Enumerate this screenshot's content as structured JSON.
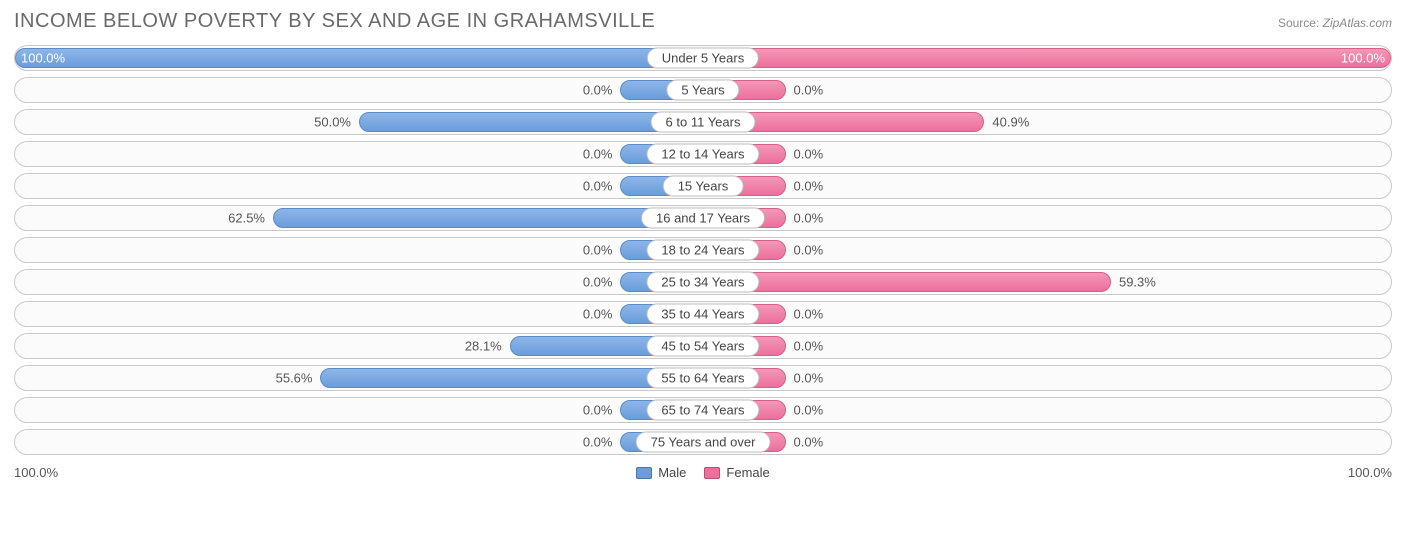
{
  "title": "INCOME BELOW POVERTY BY SEX AND AGE IN GRAHAMSVILLE",
  "source_label": "Source: ",
  "source_value": "ZipAtlas.com",
  "axis": {
    "left": "100.0%",
    "right": "100.0%"
  },
  "legend": {
    "male": "Male",
    "female": "Female"
  },
  "chart": {
    "type": "diverging-bar-horizontal",
    "male_color": "#6a9ddb",
    "female_color": "#ed6f9c",
    "track_border": "#c9c9c9",
    "track_bg": "#fbfbfb",
    "label_pill_bg": "#ffffff",
    "label_pill_border": "#bcbcbc",
    "bar_min_pct_width": 12,
    "font_size_values": 13,
    "font_size_title": 20,
    "axis_max": 100.0
  },
  "rows": [
    {
      "age": "Under 5 Years",
      "male": 100.0,
      "female": 100.0,
      "male_label": "100.0%",
      "female_label": "100.0%"
    },
    {
      "age": "5 Years",
      "male": 0.0,
      "female": 0.0,
      "male_label": "0.0%",
      "female_label": "0.0%"
    },
    {
      "age": "6 to 11 Years",
      "male": 50.0,
      "female": 40.9,
      "male_label": "50.0%",
      "female_label": "40.9%"
    },
    {
      "age": "12 to 14 Years",
      "male": 0.0,
      "female": 0.0,
      "male_label": "0.0%",
      "female_label": "0.0%"
    },
    {
      "age": "15 Years",
      "male": 0.0,
      "female": 0.0,
      "male_label": "0.0%",
      "female_label": "0.0%"
    },
    {
      "age": "16 and 17 Years",
      "male": 62.5,
      "female": 0.0,
      "male_label": "62.5%",
      "female_label": "0.0%"
    },
    {
      "age": "18 to 24 Years",
      "male": 0.0,
      "female": 0.0,
      "male_label": "0.0%",
      "female_label": "0.0%"
    },
    {
      "age": "25 to 34 Years",
      "male": 0.0,
      "female": 59.3,
      "male_label": "0.0%",
      "female_label": "59.3%"
    },
    {
      "age": "35 to 44 Years",
      "male": 0.0,
      "female": 0.0,
      "male_label": "0.0%",
      "female_label": "0.0%"
    },
    {
      "age": "45 to 54 Years",
      "male": 28.1,
      "female": 0.0,
      "male_label": "28.1%",
      "female_label": "0.0%"
    },
    {
      "age": "55 to 64 Years",
      "male": 55.6,
      "female": 0.0,
      "male_label": "55.6%",
      "female_label": "0.0%"
    },
    {
      "age": "65 to 74 Years",
      "male": 0.0,
      "female": 0.0,
      "male_label": "0.0%",
      "female_label": "0.0%"
    },
    {
      "age": "75 Years and over",
      "male": 0.0,
      "female": 0.0,
      "male_label": "0.0%",
      "female_label": "0.0%"
    }
  ]
}
